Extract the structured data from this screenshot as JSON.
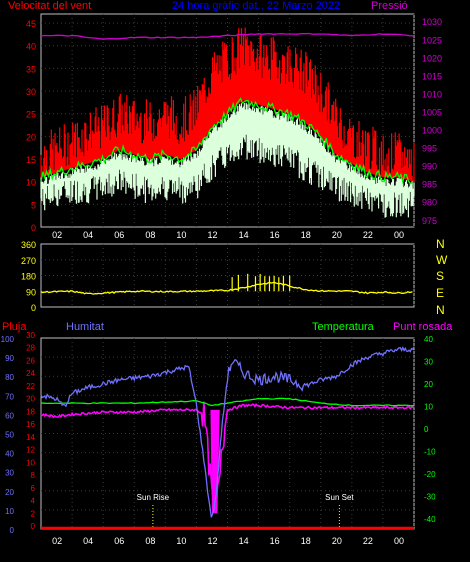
{
  "colors": {
    "background": "#000000",
    "frame": "#c0c0c0",
    "grid": "#3a3a3a",
    "wind_max": "#ff0000",
    "wind_avg": "#00ff00",
    "wind_min": "#dcffdc",
    "pressure": "#d000d0",
    "direction": "#ffff00",
    "title": "#0000ff",
    "humidity": "#7070ff",
    "temperature": "#00ff00",
    "dew_point": "#ff00ff",
    "rain": "#ff0000",
    "sun_marker": "#ffff00",
    "tick_text": "#ffffff"
  },
  "chart_data": [
    {
      "type": "line",
      "title": "24 hora gràfic dat., 22 Marzo 2022",
      "ylabel_left": "Velocitat del vent",
      "ylabel_right": "Pressió",
      "x_ticks": [
        "02",
        "04",
        "06",
        "08",
        "10",
        "12",
        "14",
        "16",
        "18",
        "20",
        "22",
        "00"
      ],
      "x_tick_hours": [
        2,
        4,
        6,
        8,
        10,
        12,
        14,
        16,
        18,
        20,
        22,
        24
      ],
      "y_left_ticks": [
        0,
        5,
        10,
        15,
        20,
        25,
        30,
        35,
        40,
        45
      ],
      "y_right_ticks": [
        975,
        980,
        985,
        990,
        995,
        1000,
        1005,
        1010,
        1015,
        1020,
        1025,
        1030
      ],
      "ylim_left": [
        0,
        47
      ],
      "ylim_right": [
        973,
        1032
      ],
      "grid": true,
      "series": [
        {
          "name": "max",
          "axis": "left",
          "x": [
            0,
            1,
            2,
            3,
            4,
            5,
            6,
            7,
            8,
            9,
            10,
            11,
            12,
            13,
            14,
            15,
            16,
            17,
            18,
            19,
            20,
            21,
            22,
            23,
            24
          ],
          "values": [
            16,
            17,
            19,
            21,
            22,
            25,
            24,
            23,
            25,
            23,
            26,
            34,
            37,
            40,
            38,
            37,
            36,
            34,
            30,
            24,
            20,
            18,
            16,
            16,
            15
          ]
        },
        {
          "name": "avg",
          "axis": "left",
          "x": [
            0,
            1,
            2,
            3,
            4,
            5,
            6,
            7,
            8,
            9,
            10,
            11,
            12,
            13,
            14,
            15,
            16,
            17,
            18,
            19,
            20,
            21,
            22,
            23,
            24
          ],
          "values": [
            11,
            12,
            13,
            14,
            15,
            17,
            16,
            15,
            16,
            15,
            17,
            22,
            25,
            28,
            27,
            26,
            25,
            23,
            20,
            16,
            14,
            12,
            11,
            11,
            10
          ]
        },
        {
          "name": "min",
          "axis": "left",
          "x": [
            0,
            1,
            2,
            3,
            4,
            5,
            6,
            7,
            8,
            9,
            10,
            11,
            12,
            13,
            14,
            15,
            16,
            17,
            18,
            19,
            20,
            21,
            22,
            23,
            24
          ],
          "values": [
            6,
            7,
            8,
            8,
            9,
            10,
            9,
            8,
            9,
            8,
            9,
            13,
            16,
            18,
            17,
            16,
            15,
            13,
            11,
            9,
            7,
            6,
            5,
            5,
            5
          ]
        },
        {
          "name": "pressure",
          "axis": "right",
          "x": [
            0,
            2,
            4,
            6,
            8,
            10,
            12,
            14,
            16,
            18,
            20,
            22,
            24
          ],
          "values": [
            1026,
            1026,
            1025,
            1025.5,
            1025.5,
            1025.5,
            1026,
            1026.5,
            1026.5,
            1026.5,
            1026,
            1026.5,
            1026
          ]
        }
      ]
    },
    {
      "type": "line",
      "right_labels": [
        "N",
        "W",
        "S",
        "E",
        "N"
      ],
      "y_ticks": [
        0,
        90,
        180,
        270,
        360
      ],
      "ylim": [
        0,
        360
      ],
      "x_tick_hours": [
        2,
        4,
        6,
        8,
        10,
        12,
        14,
        16,
        18,
        20,
        22,
        24
      ],
      "series": [
        {
          "name": "direction",
          "x": [
            0,
            2,
            3,
            4,
            5,
            6,
            8,
            10,
            12,
            13,
            14,
            15,
            16,
            17,
            18,
            20,
            21,
            22,
            23,
            24
          ],
          "values": [
            85,
            90,
            75,
            80,
            85,
            90,
            88,
            90,
            95,
            110,
            130,
            140,
            120,
            100,
            92,
            90,
            80,
            85,
            80,
            88
          ],
          "spikes": [
            12.3,
            12.7,
            13.3,
            13.8,
            14.1,
            14.4,
            14.7,
            15.0,
            15.3,
            15.6,
            16.0
          ]
        }
      ]
    },
    {
      "type": "line",
      "labels": {
        "rain": "Pluja",
        "humidity": "Humitat",
        "temperature": "Temperatura",
        "dew_point": "Punt rosada"
      },
      "y_left_humidity_ticks": [
        0,
        10,
        20,
        30,
        40,
        50,
        60,
        70,
        80,
        90,
        100
      ],
      "y_left_rain_ticks": [
        0,
        2,
        4,
        6,
        8,
        10,
        12,
        14,
        16,
        18,
        20,
        22,
        24,
        26,
        28,
        30
      ],
      "y_right_ticks": [
        -40,
        -30,
        -20,
        -10,
        0,
        10,
        20,
        30,
        40
      ],
      "ylim_humidity": [
        0,
        100
      ],
      "ylim_temp": [
        -45,
        40
      ],
      "x_ticks": [
        "02",
        "04",
        "06",
        "08",
        "10",
        "12",
        "14",
        "16",
        "18",
        "20",
        "22",
        "00"
      ],
      "x_tick_hours": [
        2,
        4,
        6,
        8,
        10,
        12,
        14,
        16,
        18,
        20,
        22,
        24
      ],
      "annotations": [
        {
          "text": "Sun Rise",
          "hour": 7.2
        },
        {
          "text": "Sun Set",
          "hour": 19.2
        }
      ],
      "series": [
        {
          "name": "humidity",
          "x": [
            0,
            1,
            1.5,
            2,
            3,
            4,
            5,
            6,
            7,
            8,
            9,
            9.5,
            10,
            10.5,
            10.8,
            11,
            11.3,
            11.6,
            12,
            12.3,
            12.6,
            13,
            14,
            15,
            16,
            17,
            18,
            19,
            20,
            21,
            22,
            23,
            24
          ],
          "values": [
            70,
            68,
            64,
            71,
            74,
            76,
            78,
            79,
            80,
            82,
            84,
            85,
            65,
            35,
            15,
            5,
            20,
            50,
            80,
            88,
            86,
            82,
            78,
            80,
            78,
            75,
            78,
            80,
            86,
            90,
            92,
            94,
            94
          ]
        },
        {
          "name": "temperature",
          "x": [
            0,
            2,
            4,
            6,
            8,
            10,
            11,
            12,
            14,
            16,
            18,
            20,
            22,
            24
          ],
          "values": [
            11,
            11,
            11,
            11,
            11.5,
            12,
            10,
            11,
            13,
            13,
            11,
            10,
            10,
            10
          ]
        },
        {
          "name": "dew_point",
          "x": [
            0,
            1,
            2,
            4,
            6,
            8,
            10,
            10.5,
            11,
            11.3,
            11.6,
            12,
            13,
            14,
            16,
            18,
            20,
            22,
            24
          ],
          "values": [
            6,
            5,
            6,
            7,
            7,
            8,
            8,
            6,
            -30,
            -35,
            -10,
            8,
            10,
            10,
            9,
            9,
            9,
            9,
            9
          ]
        },
        {
          "name": "rain",
          "x": [
            0,
            24
          ],
          "values": [
            0,
            0
          ]
        }
      ]
    }
  ]
}
